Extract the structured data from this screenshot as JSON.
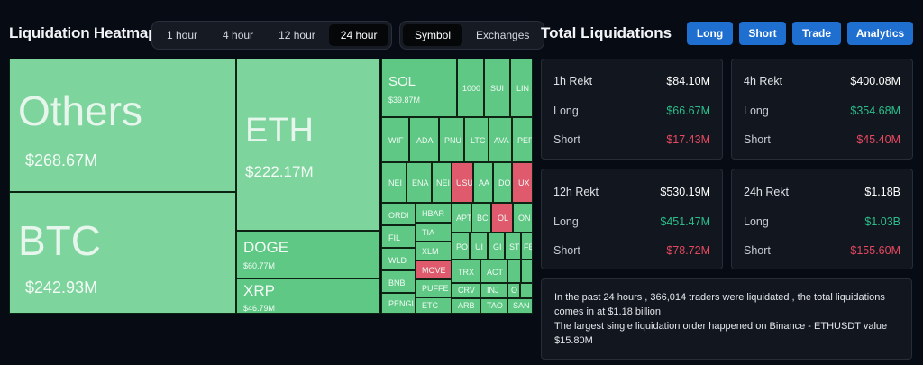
{
  "heatmap": {
    "title": "Liquidation Heatmap",
    "time_options": [
      "1 hour",
      "4 hour",
      "12 hour",
      "24 hour"
    ],
    "time_selected": "24 hour",
    "view_options": [
      "Symbol",
      "Exchanges"
    ],
    "view_selected": "Symbol",
    "tiles": {
      "others": {
        "name": "Others",
        "value": "$268.67M"
      },
      "btc": {
        "name": "BTC",
        "value": "$242.93M"
      },
      "eth": {
        "name": "ETH",
        "value": "$222.17M"
      },
      "doge": {
        "name": "DOGE",
        "value": "$60.77M"
      },
      "xrp": {
        "name": "XRP",
        "value": "$46.79M"
      },
      "sol": {
        "name": "SOL",
        "value": "$39.87M"
      },
      "small": {
        "n1000": "1000",
        "sui": "SUI",
        "link": "LIN",
        "wif": "WIF",
        "ada": "ADA",
        "pnut": "PNU",
        "ltc": "LTC",
        "avax": "AVA",
        "pepe": "PEP",
        "near": "NEI",
        "ena": "ENA",
        "neiro": "NEI",
        "usual": "USU",
        "aave": "AA",
        "dot": "DO",
        "uxlink": "UX",
        "ordi": "ORDI",
        "hbar": "HBAR",
        "apt": "APT",
        "bch": "BC",
        "ol": "OL",
        "ond": "ON",
        "fil": "FIL",
        "tia": "TIA",
        "xlm": "XLM",
        "po": "PO",
        "un": "UI",
        "gl": "GI",
        "st": "ST",
        "fe": "FE",
        "wld": "WLD",
        "move": "MOVE",
        "trx": "TRX",
        "act": "ACT",
        "bnb": "BNB",
        "puffer": "PUFFE",
        "crv": "CRV",
        "inj": "INJ",
        "o": "O",
        "pengu": "PENGU",
        "etc": "ETC",
        "arb": "ARB",
        "tao": "TAO",
        "sand": "SAN"
      }
    }
  },
  "totals": {
    "title": "Total Liquidations",
    "buttons": [
      "Long",
      "Short",
      "Trade",
      "Analytics"
    ],
    "cards": [
      {
        "title": "1h Rekt",
        "total": "$84.10M",
        "long_label": "Long",
        "long": "$66.67M",
        "short_label": "Short",
        "short": "$17.43M"
      },
      {
        "title": "4h Rekt",
        "total": "$400.08M",
        "long_label": "Long",
        "long": "$354.68M",
        "short_label": "Short",
        "short": "$45.40M"
      },
      {
        "title": "12h Rekt",
        "total": "$530.19M",
        "long_label": "Long",
        "long": "$451.47M",
        "short_label": "Short",
        "short": "$78.72M"
      },
      {
        "title": "24h Rekt",
        "total": "$1.18B",
        "long_label": "Long",
        "long": "$1.03B",
        "short_label": "Short",
        "short": "$155.60M"
      }
    ],
    "summary_line1": "In the past 24 hours , 366,014 traders were liquidated , the total liquidations comes in at $1.18 billion",
    "summary_line2": "The largest single liquidation order happened on Binance - ETHUSDT value $15.80M"
  },
  "colors": {
    "long": "#2bbd8b",
    "short": "#e5485f",
    "accent": "#1f6fd1",
    "tile_green": "#5ec884",
    "tile_red": "#e05a6d"
  }
}
